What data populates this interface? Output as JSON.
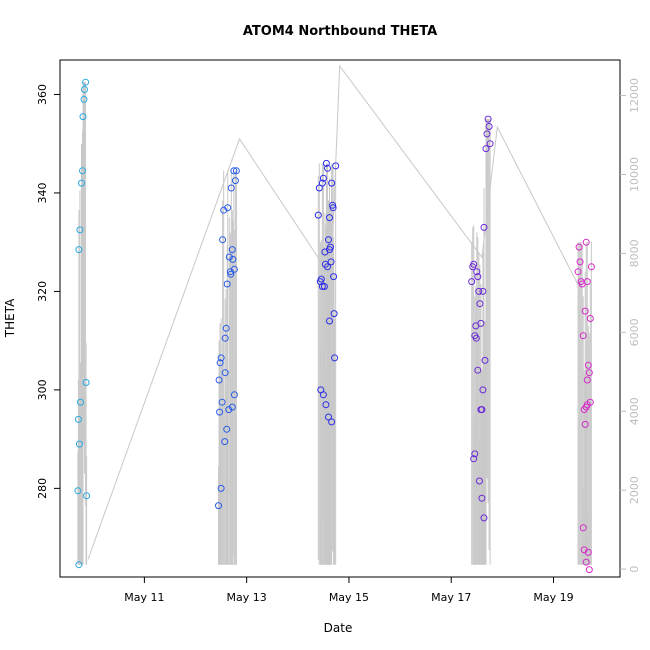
{
  "chart_data": {
    "type": "scatter",
    "title": "ATOM4 Northbound THETA",
    "xlabel": "Date",
    "ylabel": "THETA",
    "x_ticks": [
      "May 11",
      "May 13",
      "May 15",
      "May 17",
      "May 19"
    ],
    "y_ticks": [
      280,
      300,
      320,
      340,
      360
    ],
    "y2_ticks": [
      0,
      2000,
      4000,
      6000,
      8000,
      10000,
      12000
    ],
    "xlim_days": [
      9.35,
      20.3
    ],
    "ylim": [
      262,
      367
    ],
    "y2lim": [
      -200,
      12900
    ],
    "colors": {
      "line": "#c8c8c8",
      "axis": "#000000",
      "right_axis": "#bdbdbd"
    },
    "series": [
      {
        "color": "#29a9e0",
        "points": [
          [
            9.72,
            264.5
          ],
          [
            9.7,
            279.5
          ],
          [
            9.71,
            294
          ],
          [
            9.73,
            289
          ],
          [
            9.75,
            297.5
          ],
          [
            9.72,
            328.5
          ],
          [
            9.74,
            332.5
          ],
          [
            9.77,
            342
          ],
          [
            9.79,
            344.5
          ],
          [
            9.8,
            355.5
          ],
          [
            9.82,
            359
          ],
          [
            9.83,
            361
          ],
          [
            9.85,
            362.5
          ],
          [
            9.86,
            301.5
          ],
          [
            9.87,
            278.5
          ]
        ]
      },
      {
        "color": "#2a5ce8",
        "points": [
          [
            12.45,
            276.5
          ],
          [
            12.47,
            295.5
          ],
          [
            12.46,
            302
          ],
          [
            12.48,
            305.5
          ],
          [
            12.5,
            306.5
          ],
          [
            12.52,
            297.5
          ],
          [
            12.5,
            280
          ],
          [
            12.53,
            330.5
          ],
          [
            12.55,
            336.5
          ],
          [
            12.57,
            289.5
          ],
          [
            12.58,
            310.5
          ],
          [
            12.6,
            312.5
          ],
          [
            12.58,
            303.5
          ],
          [
            12.62,
            321.5
          ],
          [
            12.63,
            337
          ],
          [
            12.65,
            296
          ],
          [
            12.66,
            327
          ],
          [
            12.68,
            324
          ],
          [
            12.7,
            341
          ],
          [
            12.72,
            328.5
          ],
          [
            12.73,
            326.5
          ],
          [
            12.75,
            344.5
          ],
          [
            12.76,
            324.5
          ],
          [
            12.78,
            342.5
          ],
          [
            12.8,
            344.5
          ],
          [
            12.72,
            296.5
          ],
          [
            12.76,
            299
          ],
          [
            12.61,
            292
          ],
          [
            12.69,
            323.5
          ]
        ]
      },
      {
        "color": "#2e2ee8",
        "points": [
          [
            14.4,
            335.5
          ],
          [
            14.42,
            341
          ],
          [
            14.44,
            322
          ],
          [
            14.46,
            322.5
          ],
          [
            14.48,
            342
          ],
          [
            14.5,
            343
          ],
          [
            14.52,
            321
          ],
          [
            14.54,
            325.5
          ],
          [
            14.56,
            346
          ],
          [
            14.58,
            345
          ],
          [
            14.6,
            330.5
          ],
          [
            14.62,
            335
          ],
          [
            14.62,
            328.5
          ],
          [
            14.64,
            329
          ],
          [
            14.66,
            342
          ],
          [
            14.68,
            337.5
          ],
          [
            14.7,
            323
          ],
          [
            14.71,
            315.5
          ],
          [
            14.72,
            306.5
          ],
          [
            14.74,
            345.5
          ],
          [
            14.45,
            300
          ],
          [
            14.5,
            299
          ],
          [
            14.55,
            297
          ],
          [
            14.6,
            294.5
          ],
          [
            14.62,
            314
          ],
          [
            14.58,
            325
          ],
          [
            14.65,
            326
          ],
          [
            14.66,
            293.5
          ],
          [
            14.48,
            321
          ],
          [
            14.53,
            328
          ],
          [
            14.69,
            337
          ]
        ]
      },
      {
        "color": "#6a2ad6",
        "points": [
          [
            17.4,
            322
          ],
          [
            17.42,
            325
          ],
          [
            17.44,
            286
          ],
          [
            17.46,
            287
          ],
          [
            17.48,
            313
          ],
          [
            17.5,
            324
          ],
          [
            17.52,
            323
          ],
          [
            17.54,
            320
          ],
          [
            17.56,
            317.5
          ],
          [
            17.58,
            313.5
          ],
          [
            17.6,
            296
          ],
          [
            17.62,
            320
          ],
          [
            17.64,
            333
          ],
          [
            17.66,
            306
          ],
          [
            17.68,
            349
          ],
          [
            17.7,
            352
          ],
          [
            17.72,
            355
          ],
          [
            17.74,
            353.5
          ],
          [
            17.76,
            350
          ],
          [
            17.55,
            281.5
          ],
          [
            17.6,
            278
          ],
          [
            17.64,
            274
          ],
          [
            17.58,
            296
          ],
          [
            17.62,
            300
          ],
          [
            17.49,
            310.5
          ],
          [
            17.52,
            304
          ],
          [
            17.46,
            311
          ],
          [
            17.44,
            325.5
          ]
        ]
      },
      {
        "color": "#d62ac8",
        "points": [
          [
            19.5,
            329
          ],
          [
            19.52,
            326
          ],
          [
            19.54,
            322
          ],
          [
            19.56,
            321.5
          ],
          [
            19.58,
            311
          ],
          [
            19.6,
            296
          ],
          [
            19.62,
            316
          ],
          [
            19.64,
            330
          ],
          [
            19.66,
            322
          ],
          [
            19.68,
            305
          ],
          [
            19.7,
            303.5
          ],
          [
            19.72,
            314.5
          ],
          [
            19.74,
            325
          ],
          [
            19.58,
            272
          ],
          [
            19.6,
            267.5
          ],
          [
            19.64,
            265
          ],
          [
            19.68,
            267
          ],
          [
            19.7,
            263.5
          ],
          [
            19.62,
            293
          ],
          [
            19.66,
            297
          ],
          [
            19.72,
            297.5
          ],
          [
            19.48,
            324
          ],
          [
            19.64,
            296.5
          ],
          [
            19.66,
            302
          ]
        ]
      }
    ],
    "y2_line": [
      [
        9.9,
        250
      ],
      [
        12.86,
        10900
      ],
      [
        14.65,
        7400
      ],
      [
        14.82,
        12750
      ],
      [
        17.6,
        7900
      ],
      [
        17.9,
        11200
      ],
      [
        19.5,
        7150
      ]
    ]
  }
}
